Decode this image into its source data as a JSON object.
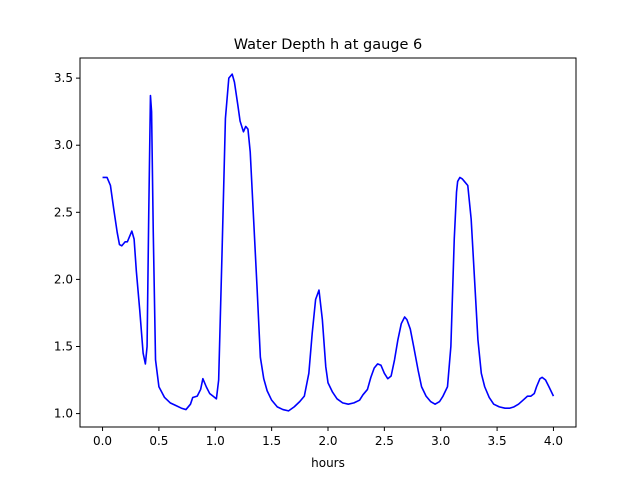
{
  "chart_data": {
    "type": "line",
    "title": "Water Depth h at gauge 6",
    "xlabel": "hours",
    "ylabel": "",
    "xlim": [
      -0.2,
      4.2
    ],
    "ylim": [
      0.9,
      3.65
    ],
    "xticks": [
      0.0,
      0.5,
      1.0,
      1.5,
      2.0,
      2.5,
      3.0,
      3.5,
      4.0
    ],
    "xtick_labels": [
      "0.0",
      "0.5",
      "1.0",
      "1.5",
      "2.0",
      "2.5",
      "3.0",
      "3.5",
      "4.0"
    ],
    "yticks": [
      1.0,
      1.5,
      2.0,
      2.5,
      3.0,
      3.5
    ],
    "ytick_labels": [
      "1.0",
      "1.5",
      "2.0",
      "2.5",
      "3.0",
      "3.5"
    ],
    "grid": false,
    "series": [
      {
        "name": "",
        "color": "#0000ff",
        "x": [
          0.0,
          0.04,
          0.07,
          0.1,
          0.13,
          0.15,
          0.17,
          0.2,
          0.22,
          0.24,
          0.26,
          0.28,
          0.3,
          0.33,
          0.36,
          0.38,
          0.395,
          0.41,
          0.425,
          0.435,
          0.45,
          0.47,
          0.5,
          0.55,
          0.6,
          0.65,
          0.7,
          0.74,
          0.78,
          0.8,
          0.84,
          0.87,
          0.89,
          0.92,
          0.95,
          0.98,
          1.01,
          1.03,
          1.06,
          1.09,
          1.12,
          1.15,
          1.17,
          1.2,
          1.22,
          1.25,
          1.27,
          1.29,
          1.31,
          1.34,
          1.37,
          1.4,
          1.43,
          1.46,
          1.5,
          1.55,
          1.6,
          1.65,
          1.7,
          1.75,
          1.79,
          1.83,
          1.86,
          1.89,
          1.92,
          1.95,
          1.98,
          2.0,
          2.04,
          2.08,
          2.13,
          2.18,
          2.23,
          2.28,
          2.31,
          2.35,
          2.38,
          2.41,
          2.44,
          2.47,
          2.5,
          2.53,
          2.56,
          2.59,
          2.62,
          2.65,
          2.68,
          2.7,
          2.73,
          2.76,
          2.8,
          2.83,
          2.87,
          2.91,
          2.95,
          2.99,
          3.02,
          3.06,
          3.09,
          3.12,
          3.14,
          3.15,
          3.17,
          3.19,
          3.21,
          3.24,
          3.27,
          3.3,
          3.33,
          3.36,
          3.39,
          3.43,
          3.47,
          3.52,
          3.57,
          3.61,
          3.65,
          3.69,
          3.73,
          3.77,
          3.8,
          3.83,
          3.85,
          3.88,
          3.9,
          3.93,
          3.96,
          4.0
        ],
        "y": [
          2.76,
          2.76,
          2.7,
          2.52,
          2.35,
          2.26,
          2.25,
          2.28,
          2.28,
          2.32,
          2.36,
          2.3,
          2.06,
          1.77,
          1.45,
          1.37,
          1.5,
          2.5,
          3.37,
          3.25,
          2.35,
          1.4,
          1.2,
          1.12,
          1.08,
          1.06,
          1.04,
          1.03,
          1.07,
          1.12,
          1.13,
          1.18,
          1.26,
          1.2,
          1.15,
          1.13,
          1.11,
          1.25,
          2.2,
          3.2,
          3.5,
          3.53,
          3.47,
          3.3,
          3.18,
          3.1,
          3.14,
          3.12,
          2.95,
          2.45,
          1.95,
          1.42,
          1.26,
          1.17,
          1.1,
          1.05,
          1.03,
          1.02,
          1.05,
          1.09,
          1.13,
          1.3,
          1.6,
          1.85,
          1.92,
          1.7,
          1.35,
          1.23,
          1.16,
          1.11,
          1.08,
          1.07,
          1.08,
          1.1,
          1.14,
          1.18,
          1.27,
          1.34,
          1.37,
          1.36,
          1.3,
          1.26,
          1.28,
          1.4,
          1.55,
          1.67,
          1.72,
          1.7,
          1.63,
          1.5,
          1.32,
          1.2,
          1.13,
          1.09,
          1.07,
          1.09,
          1.13,
          1.2,
          1.5,
          2.3,
          2.65,
          2.73,
          2.76,
          2.75,
          2.73,
          2.7,
          2.45,
          2.0,
          1.55,
          1.3,
          1.2,
          1.12,
          1.07,
          1.05,
          1.04,
          1.04,
          1.05,
          1.07,
          1.1,
          1.13,
          1.13,
          1.15,
          1.2,
          1.26,
          1.27,
          1.25,
          1.2,
          1.13
        ]
      }
    ]
  }
}
